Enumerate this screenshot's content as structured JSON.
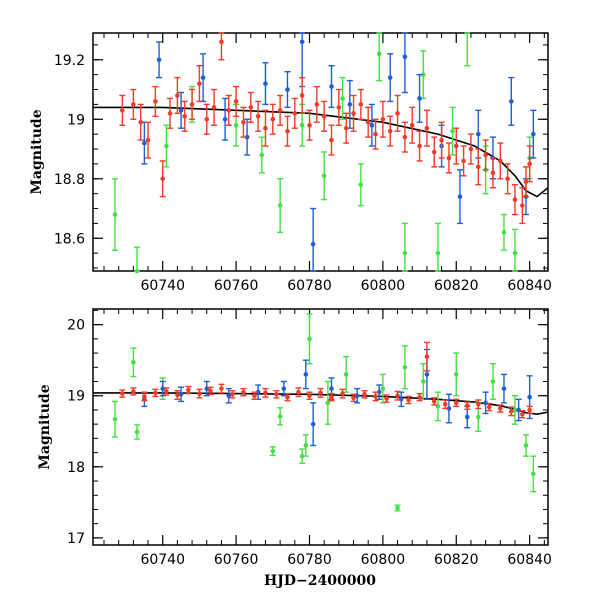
{
  "chart_data": [
    {
      "type": "scatter",
      "panel": "top",
      "xlabel": "",
      "ylabel": "Magnitude",
      "xlim": [
        60721,
        60845
      ],
      "ylim": [
        19.29,
        18.49
      ],
      "y_inverted": true,
      "xticks": [
        60740,
        60760,
        60780,
        60800,
        60820,
        60840
      ],
      "xtick_labels": [
        "60740",
        "60760",
        "60780",
        "60800",
        "60820",
        "60840"
      ],
      "yticks": [
        18.6,
        18.8,
        19.0,
        19.2
      ],
      "ytick_labels": [
        "18.6",
        "18.8",
        "19",
        "19.2"
      ],
      "grid": false,
      "series_colors": {
        "green": "#44e044",
        "blue": "#1f5fd6",
        "red": "#f03c28",
        "model": "#000000"
      },
      "series": [
        {
          "color_key": "green",
          "points": [
            [
              60727,
              18.68,
              0.12
            ],
            [
              60733,
              18.49,
              0.08
            ],
            [
              60741,
              18.91,
              0.07
            ],
            [
              60748,
              19.05,
              0.06
            ],
            [
              60760,
              18.98,
              0.07
            ],
            [
              60767,
              18.88,
              0.06
            ],
            [
              60772,
              18.71,
              0.09
            ],
            [
              60778,
              18.98,
              0.07
            ],
            [
              60784,
              18.81,
              0.08
            ],
            [
              60789,
              19.07,
              0.07
            ],
            [
              60794,
              18.78,
              0.07
            ],
            [
              60799,
              19.22,
              0.09
            ],
            [
              60806,
              18.55,
              0.1
            ],
            [
              60811,
              19.15,
              0.08
            ],
            [
              60815,
              18.55,
              0.1
            ],
            [
              60819,
              18.96,
              0.08
            ],
            [
              60823,
              19.3,
              0.12
            ],
            [
              60828,
              18.83,
              0.08
            ],
            [
              60833,
              18.62,
              0.06
            ],
            [
              60836,
              18.55,
              0.08
            ],
            [
              60840,
              18.87,
              0.07
            ]
          ]
        },
        {
          "color_key": "blue",
          "points": [
            [
              60735,
              18.92,
              0.07
            ],
            [
              60739,
              19.2,
              0.06
            ],
            [
              60745,
              19.03,
              0.06
            ],
            [
              60751,
              19.14,
              0.08
            ],
            [
              60757,
              19.0,
              0.07
            ],
            [
              60763,
              18.94,
              0.06
            ],
            [
              60768,
              19.12,
              0.07
            ],
            [
              60774,
              19.1,
              0.06
            ],
            [
              60778,
              19.26,
              0.15
            ],
            [
              60781,
              18.58,
              0.12
            ],
            [
              60786,
              19.11,
              0.07
            ],
            [
              60791,
              19.05,
              0.08
            ],
            [
              60797,
              18.98,
              0.07
            ],
            [
              60802,
              19.14,
              0.08
            ],
            [
              60806,
              19.21,
              0.12
            ],
            [
              60810,
              19.07,
              0.08
            ],
            [
              60816,
              18.91,
              0.07
            ],
            [
              60821,
              18.74,
              0.09
            ],
            [
              60826,
              18.95,
              0.08
            ],
            [
              60830,
              18.87,
              0.07
            ],
            [
              60835,
              19.06,
              0.08
            ],
            [
              60839,
              18.74,
              0.06
            ],
            [
              60841,
              18.95,
              0.08
            ]
          ]
        },
        {
          "color_key": "red",
          "points": [
            [
              60729,
              19.03,
              0.05
            ],
            [
              60732,
              19.05,
              0.05
            ],
            [
              60734,
              18.99,
              0.06
            ],
            [
              60736,
              18.93,
              0.06
            ],
            [
              60738,
              19.06,
              0.05
            ],
            [
              60740,
              18.8,
              0.06
            ],
            [
              60742,
              19.02,
              0.05
            ],
            [
              60744,
              19.08,
              0.06
            ],
            [
              60746,
              19.01,
              0.05
            ],
            [
              60748,
              19.05,
              0.05
            ],
            [
              60750,
              19.12,
              0.06
            ],
            [
              60752,
              19.0,
              0.05
            ],
            [
              60754,
              19.04,
              0.06
            ],
            [
              60756,
              19.26,
              0.06
            ],
            [
              60758,
              19.03,
              0.05
            ],
            [
              60760,
              19.06,
              0.05
            ],
            [
              60762,
              18.99,
              0.05
            ],
            [
              60764,
              19.04,
              0.05
            ],
            [
              60766,
              19.01,
              0.05
            ],
            [
              60768,
              18.97,
              0.06
            ],
            [
              60770,
              19.0,
              0.05
            ],
            [
              60772,
              19.03,
              0.05
            ],
            [
              60774,
              18.96,
              0.05
            ],
            [
              60776,
              19.02,
              0.05
            ],
            [
              60778,
              19.08,
              0.06
            ],
            [
              60780,
              18.98,
              0.05
            ],
            [
              60782,
              19.05,
              0.06
            ],
            [
              60784,
              19.01,
              0.05
            ],
            [
              60786,
              18.93,
              0.05
            ],
            [
              60788,
              19.04,
              0.06
            ],
            [
              60790,
              18.97,
              0.05
            ],
            [
              60792,
              19.02,
              0.06
            ],
            [
              60794,
              19.05,
              0.05
            ],
            [
              60796,
              18.99,
              0.05
            ],
            [
              60798,
              18.95,
              0.05
            ],
            [
              60800,
              19.0,
              0.06
            ],
            [
              60802,
              18.96,
              0.05
            ],
            [
              60804,
              19.02,
              0.06
            ],
            [
              60806,
              18.94,
              0.05
            ],
            [
              60808,
              18.98,
              0.06
            ],
            [
              60810,
              18.91,
              0.05
            ],
            [
              60812,
              18.97,
              0.06
            ],
            [
              60814,
              18.89,
              0.05
            ],
            [
              60816,
              18.93,
              0.06
            ],
            [
              60818,
              18.87,
              0.05
            ],
            [
              60820,
              18.91,
              0.06
            ],
            [
              60822,
              18.86,
              0.05
            ],
            [
              60824,
              18.9,
              0.05
            ],
            [
              60826,
              18.84,
              0.06
            ],
            [
              60828,
              18.88,
              0.05
            ],
            [
              60830,
              18.82,
              0.05
            ],
            [
              60832,
              18.86,
              0.06
            ],
            [
              60834,
              18.8,
              0.05
            ],
            [
              60836,
              18.73,
              0.05
            ],
            [
              60838,
              18.71,
              0.06
            ],
            [
              60839,
              18.79,
              0.05
            ],
            [
              60840,
              18.85,
              0.06
            ]
          ]
        }
      ],
      "model_curve": [
        [
          60721,
          19.04
        ],
        [
          60740,
          19.04
        ],
        [
          60760,
          19.03
        ],
        [
          60780,
          19.02
        ],
        [
          60800,
          18.99
        ],
        [
          60815,
          18.95
        ],
        [
          60825,
          18.91
        ],
        [
          60832,
          18.86
        ],
        [
          60836,
          18.81
        ],
        [
          60839,
          18.76
        ],
        [
          60842,
          18.74
        ],
        [
          60845,
          18.77
        ]
      ]
    },
    {
      "type": "scatter",
      "panel": "bottom",
      "xlabel": "HJD−2400000",
      "ylabel": "Magnitude",
      "xlim": [
        60721,
        60845
      ],
      "ylim": [
        20.22,
        16.9
      ],
      "y_inverted": true,
      "xticks": [
        60740,
        60760,
        60780,
        60800,
        60820,
        60840
      ],
      "xtick_labels": [
        "60740",
        "60760",
        "60780",
        "60800",
        "60820",
        "60840"
      ],
      "yticks": [
        17,
        18,
        19,
        20
      ],
      "ytick_labels": [
        "17",
        "18",
        "19",
        "20"
      ],
      "grid": false,
      "series_colors": {
        "green": "#44e044",
        "blue": "#1f5fd6",
        "red": "#f03c28",
        "model": "#000000"
      },
      "series": [
        {
          "color_key": "green",
          "points": [
            [
              60727,
              18.67,
              0.25
            ],
            [
              60732,
              19.47,
              0.2
            ],
            [
              60733,
              18.49,
              0.1
            ],
            [
              60740,
              19.1,
              0.15
            ],
            [
              60770,
              18.22,
              0.06
            ],
            [
              60772,
              18.71,
              0.12
            ],
            [
              60778,
              18.15,
              0.1
            ],
            [
              60779,
              18.3,
              0.15
            ],
            [
              60780,
              19.8,
              0.35
            ],
            [
              60785,
              18.9,
              0.3
            ],
            [
              60790,
              19.3,
              0.25
            ],
            [
              60800,
              19.1,
              0.2
            ],
            [
              60804,
              17.42,
              0.04
            ],
            [
              60806,
              19.4,
              0.3
            ],
            [
              60811,
              19.2,
              0.25
            ],
            [
              60815,
              18.85,
              0.2
            ],
            [
              60820,
              19.3,
              0.3
            ],
            [
              60826,
              18.7,
              0.2
            ],
            [
              60830,
              19.2,
              0.25
            ],
            [
              60836,
              18.8,
              0.2
            ],
            [
              60839,
              18.3,
              0.15
            ],
            [
              60841,
              17.9,
              0.25
            ]
          ]
        },
        {
          "color_key": "blue",
          "points": [
            [
              60735,
              18.95,
              0.1
            ],
            [
              60740,
              19.1,
              0.1
            ],
            [
              60745,
              19.02,
              0.1
            ],
            [
              60752,
              19.1,
              0.1
            ],
            [
              60758,
              19.0,
              0.1
            ],
            [
              60766,
              19.05,
              0.1
            ],
            [
              60773,
              19.1,
              0.1
            ],
            [
              60779,
              19.3,
              0.2
            ],
            [
              60781,
              18.6,
              0.3
            ],
            [
              60786,
              19.1,
              0.15
            ],
            [
              60793,
              19.0,
              0.1
            ],
            [
              60799,
              19.05,
              0.1
            ],
            [
              60805,
              18.95,
              0.1
            ],
            [
              60812,
              19.3,
              0.35
            ],
            [
              60818,
              18.82,
              0.2
            ],
            [
              60823,
              18.7,
              0.15
            ],
            [
              60828,
              18.9,
              0.15
            ],
            [
              60833,
              19.1,
              0.2
            ],
            [
              60837,
              18.8,
              0.15
            ],
            [
              60840,
              18.98,
              0.3
            ]
          ]
        },
        {
          "color_key": "red",
          "points": [
            [
              60729,
              19.03,
              0.05
            ],
            [
              60732,
              19.06,
              0.05
            ],
            [
              60735,
              18.99,
              0.06
            ],
            [
              60738,
              19.04,
              0.05
            ],
            [
              60741,
              19.06,
              0.05
            ],
            [
              60744,
              19.01,
              0.06
            ],
            [
              60747,
              19.08,
              0.05
            ],
            [
              60750,
              19.03,
              0.06
            ],
            [
              60753,
              19.07,
              0.05
            ],
            [
              60756,
              19.1,
              0.06
            ],
            [
              60759,
              19.02,
              0.05
            ],
            [
              60762,
              19.05,
              0.05
            ],
            [
              60765,
              19.0,
              0.05
            ],
            [
              60768,
              19.04,
              0.06
            ],
            [
              60771,
              19.02,
              0.05
            ],
            [
              60774,
              18.98,
              0.05
            ],
            [
              60777,
              19.05,
              0.06
            ],
            [
              60780,
              19.0,
              0.05
            ],
            [
              60783,
              19.04,
              0.06
            ],
            [
              60786,
              18.98,
              0.05
            ],
            [
              60789,
              19.03,
              0.06
            ],
            [
              60792,
              18.97,
              0.05
            ],
            [
              60795,
              19.02,
              0.05
            ],
            [
              60798,
              18.99,
              0.06
            ],
            [
              60801,
              18.96,
              0.05
            ],
            [
              60804,
              19.0,
              0.06
            ],
            [
              60807,
              18.94,
              0.05
            ],
            [
              60810,
              18.98,
              0.05
            ],
            [
              60812,
              19.55,
              0.2
            ],
            [
              60814,
              18.92,
              0.05
            ],
            [
              60817,
              18.88,
              0.06
            ],
            [
              60820,
              18.9,
              0.05
            ],
            [
              60823,
              18.86,
              0.05
            ],
            [
              60826,
              18.88,
              0.06
            ],
            [
              60829,
              18.84,
              0.05
            ],
            [
              60832,
              18.82,
              0.05
            ],
            [
              60835,
              18.78,
              0.06
            ],
            [
              60838,
              18.74,
              0.05
            ],
            [
              60840,
              18.8,
              0.05
            ]
          ]
        }
      ],
      "model_curve": [
        [
          60721,
          19.04
        ],
        [
          60740,
          19.04
        ],
        [
          60760,
          19.03
        ],
        [
          60780,
          19.02
        ],
        [
          60800,
          18.99
        ],
        [
          60815,
          18.95
        ],
        [
          60825,
          18.91
        ],
        [
          60832,
          18.86
        ],
        [
          60836,
          18.81
        ],
        [
          60839,
          18.76
        ],
        [
          60842,
          18.74
        ],
        [
          60845,
          18.77
        ]
      ]
    }
  ]
}
